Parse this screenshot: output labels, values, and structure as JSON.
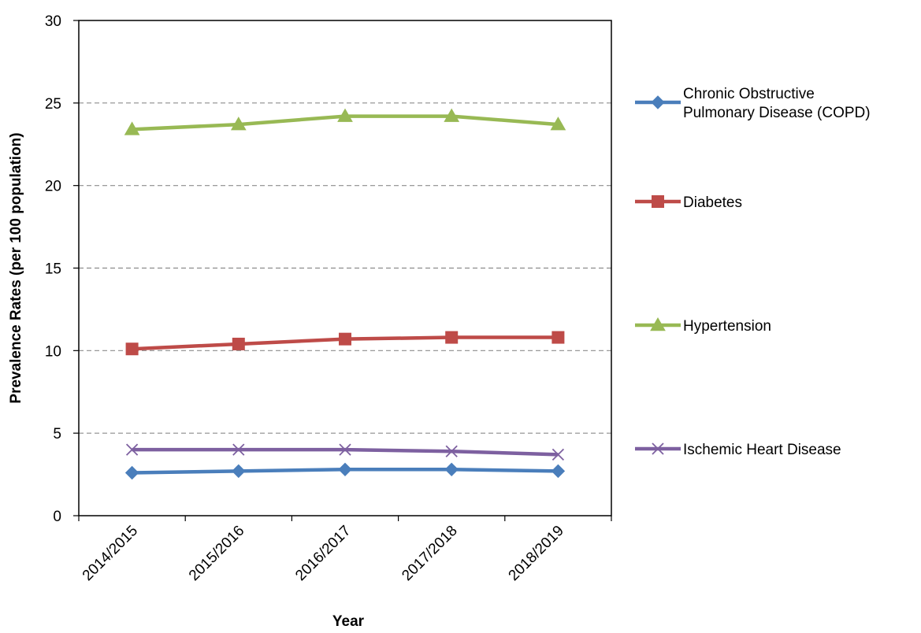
{
  "chart_data": {
    "type": "line",
    "title": "",
    "xlabel": "Year",
    "ylabel": "Prevalence Rates (per 100 population)",
    "categories": [
      "2014/2015",
      "2015/2016",
      "2016/2017",
      "2017/2018",
      "2018/2019"
    ],
    "ylim": [
      0,
      30
    ],
    "yticks": [
      0,
      5,
      10,
      15,
      20,
      25,
      30
    ],
    "grid": "horizontal dashed",
    "legend_position": "right",
    "series": [
      {
        "name": "Chronic Obstructive Pulmonary Disease (COPD)",
        "legend_lines": [
          "Chronic Obstructive",
          "Pulmonary Disease (COPD)"
        ],
        "color": "#4a7ebb",
        "marker": "diamond",
        "values": [
          2.6,
          2.7,
          2.8,
          2.8,
          2.7
        ]
      },
      {
        "name": "Diabetes",
        "legend_lines": [
          "Diabetes"
        ],
        "color": "#be4b48",
        "marker": "square",
        "values": [
          10.1,
          10.4,
          10.7,
          10.8,
          10.8
        ]
      },
      {
        "name": "Hypertension",
        "legend_lines": [
          "Hypertension"
        ],
        "color": "#98b954",
        "marker": "triangle",
        "values": [
          23.4,
          23.7,
          24.2,
          24.2,
          23.7
        ]
      },
      {
        "name": "Ischemic Heart Disease",
        "legend_lines": [
          "Ischemic Heart Disease"
        ],
        "color": "#7d60a0",
        "marker": "x",
        "values": [
          4.0,
          4.0,
          4.0,
          3.9,
          3.7
        ]
      }
    ]
  }
}
